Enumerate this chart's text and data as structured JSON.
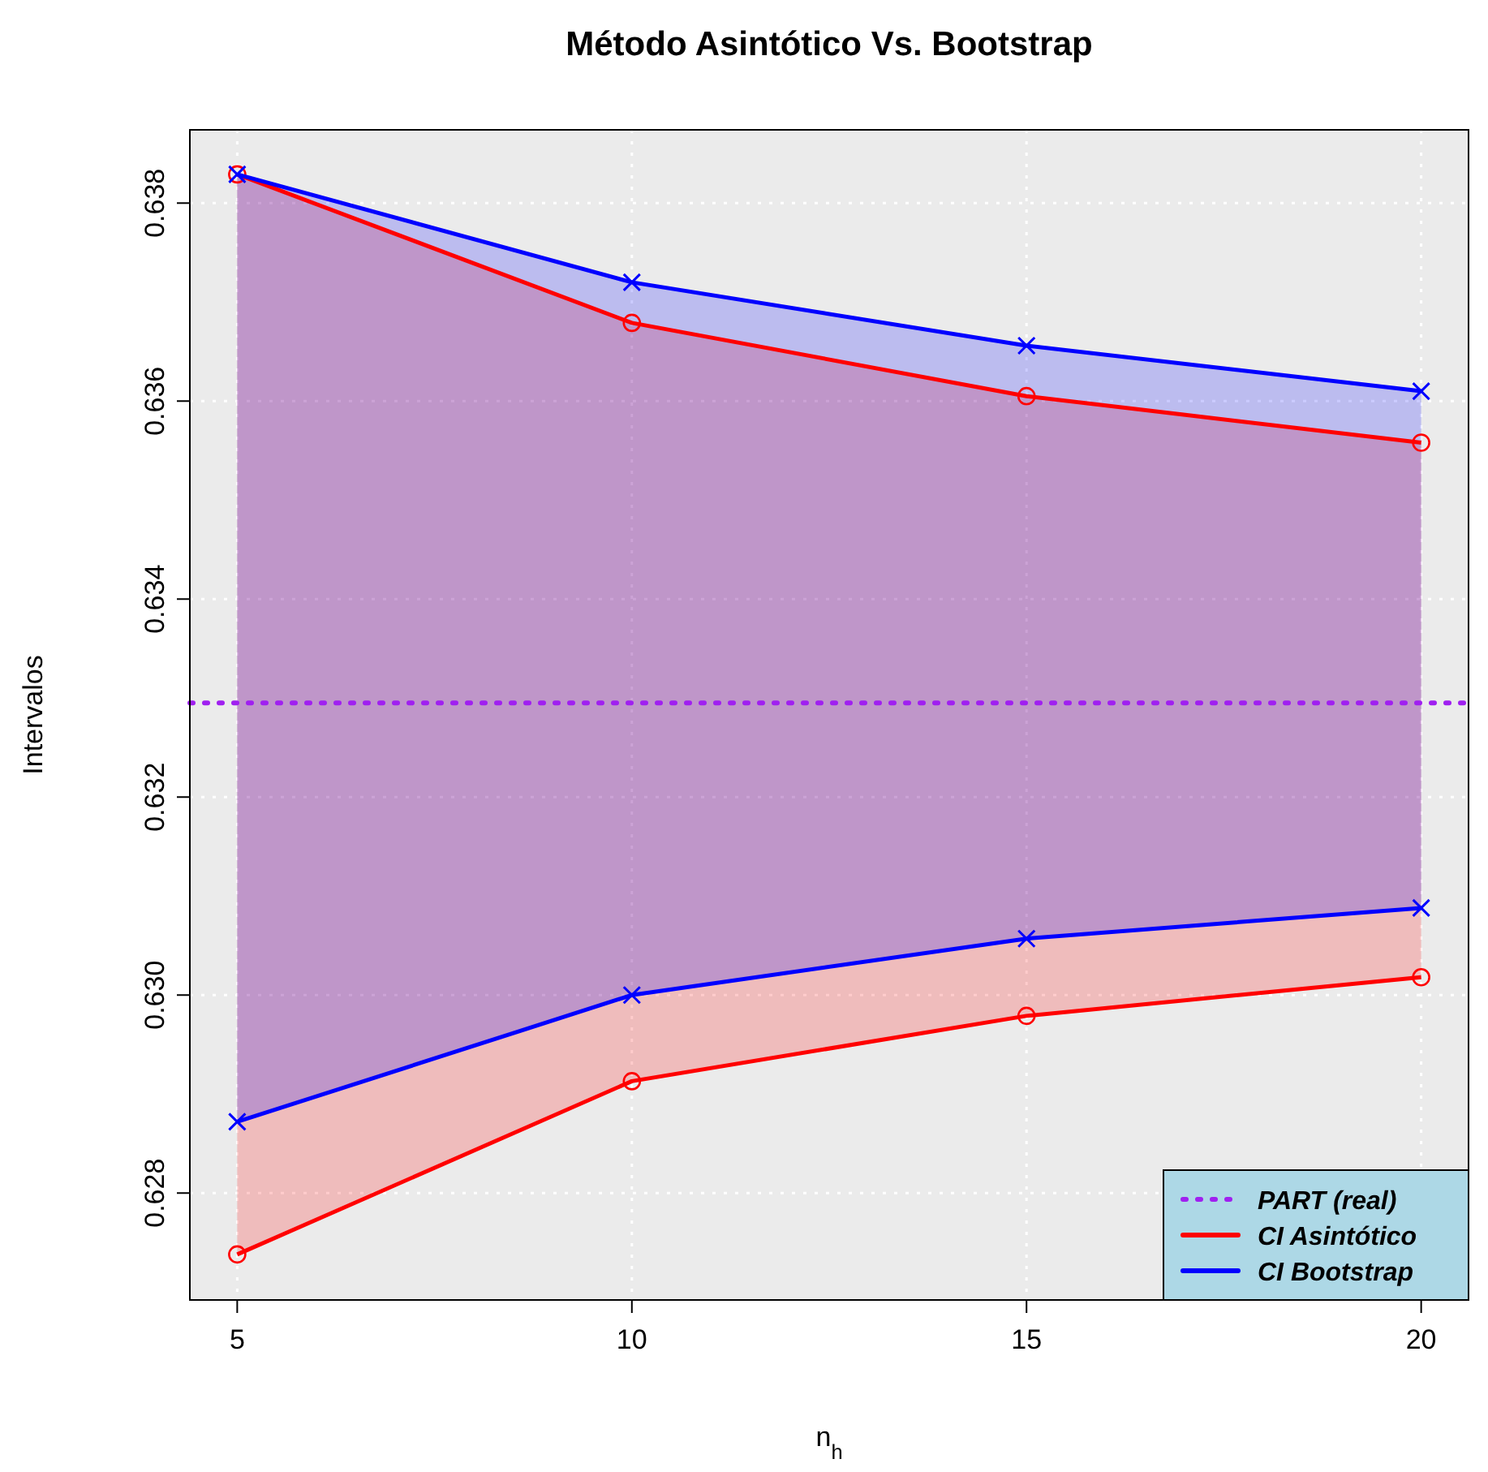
{
  "chart_data": {
    "type": "line",
    "title": "Método Asintótico Vs. Bootstrap",
    "xlabel": "n$_{h}$",
    "ylabel": "Intervalos",
    "x": [
      5,
      10,
      15,
      20
    ],
    "series": [
      {
        "name": "CI Asintótico",
        "color": "#ff0000",
        "marker": "circle",
        "values": [
          0.63829,
          0.63679,
          0.63605,
          0.63558
        ],
        "lower": [
          0.62738,
          0.62913,
          0.62979,
          0.63018
        ],
        "upper": [
          0.63829,
          0.63679,
          0.63605,
          0.63558
        ]
      },
      {
        "color": "#ff0000",
        "marker": "circle",
        "values": [
          0.62738,
          0.62913,
          0.62979,
          0.63018
        ]
      },
      {
        "name": "CI Bootstrap",
        "color": "#0000ff",
        "marker": "cross",
        "values": [
          0.63829,
          0.6372,
          0.63656,
          0.6361
        ],
        "lower": [
          0.62872,
          0.63,
          0.63057,
          0.63088
        ],
        "upper": [
          0.63829,
          0.6372,
          0.63656,
          0.6361
        ]
      },
      {
        "color": "#0000ff",
        "marker": "cross",
        "values": [
          0.62872,
          0.63,
          0.63057,
          0.63088
        ]
      }
    ],
    "ref_lines": [
      {
        "axis": "y",
        "value": 0.63295,
        "label": "PART (real)",
        "color": "#a020f0",
        "line_style": "dotted"
      }
    ],
    "xlim": [
      4.4,
      20.6
    ],
    "xticks": [
      5,
      10,
      15,
      20
    ],
    "ylim": [
      0.62692,
      0.63874
    ],
    "yticks": [
      {
        "value": 0.628,
        "label": "0.628"
      },
      {
        "value": 0.63,
        "label": "0.630"
      },
      {
        "value": 0.632,
        "label": "0.632"
      },
      {
        "value": 0.634,
        "label": "0.634"
      },
      {
        "value": 0.636,
        "label": "0.636"
      },
      {
        "value": 0.638,
        "label": "0.638"
      }
    ],
    "grid": true,
    "legend": "bottom right",
    "line_style": "solid"
  }
}
